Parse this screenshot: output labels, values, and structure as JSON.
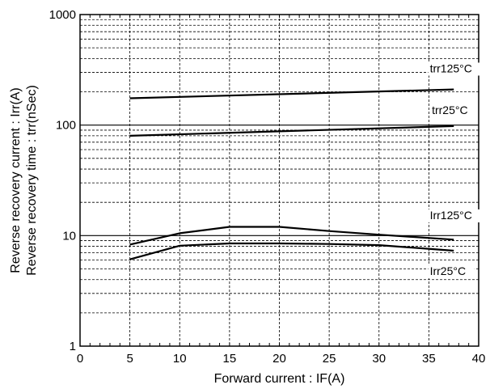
{
  "chart_data": {
    "type": "line",
    "xlabel": "Forward current : IF(A)",
    "ylabel_lines": [
      "Reverse recovery current : Irr(A)",
      "Reverse recovery time : trr(nSec)"
    ],
    "xlim": [
      0,
      40
    ],
    "ylim": [
      1,
      1000
    ],
    "yscale": "log",
    "grid": true,
    "x_ticks": [
      "0",
      "5",
      "10",
      "15",
      "20",
      "25",
      "30",
      "35",
      "40"
    ],
    "y_ticks": [
      "1",
      "10",
      "100",
      "1000"
    ],
    "series": [
      {
        "x": [
          5,
          37.5
        ],
        "y": [
          175,
          210
        ]
      },
      {
        "x": [
          5,
          37.5
        ],
        "y": [
          80,
          98
        ]
      },
      {
        "x": [
          5,
          10,
          15,
          20,
          25,
          30,
          37.5
        ],
        "y": [
          8.3,
          10.5,
          12,
          12,
          11,
          10.2,
          9.2
        ]
      },
      {
        "x": [
          5,
          10,
          15,
          20,
          25,
          30,
          37.5
        ],
        "y": [
          6.1,
          8.1,
          8.5,
          8.5,
          8.4,
          8.2,
          7.3
        ]
      }
    ],
    "annotations": [
      {
        "text": "trr125°C",
        "x": 35.1,
        "y": 300
      },
      {
        "text": "trr25°C",
        "x": 35.3,
        "y": 126
      },
      {
        "text": "Irr125°C",
        "x": 35.1,
        "y": 14.1
      },
      {
        "text": "Irr25°C",
        "x": 35.1,
        "y": 4.4
      }
    ]
  }
}
